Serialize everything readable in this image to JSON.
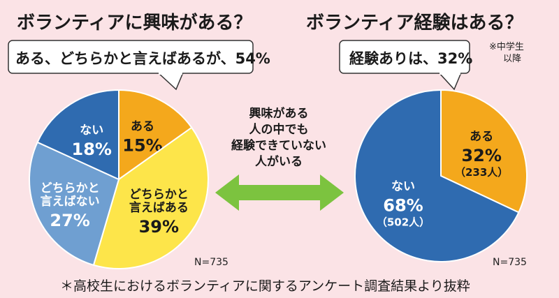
{
  "left": {
    "title": "ボランティアに興味がある？",
    "callout": "ある、どちらかと言えばあるが、54%",
    "n_label": "N=735"
  },
  "right": {
    "title": "ボランティア経験はある？",
    "callout": "経験ありは、32%",
    "note_line1": "※中学生",
    "note_line2": "以降",
    "n_label": "N=735"
  },
  "middle": {
    "line1": "興味がある",
    "line2": "人の中でも",
    "line3": "経験できていない",
    "line4": "人がいる"
  },
  "footer": "＊高校生におけるボランティアに関するアンケート調査結果より抜粋",
  "chart_data": [
    {
      "type": "pie",
      "title": "ボランティアに興味がある？",
      "slices": [
        {
          "label": [
            "ある"
          ],
          "pct_label": "15%",
          "value": 15,
          "color": "#f4a81c"
        },
        {
          "label": [
            "どちらかと",
            "言えばある"
          ],
          "pct_label": "39%",
          "value": 39,
          "color": "#fde54a"
        },
        {
          "label": [
            "どちらかと",
            "言えばない"
          ],
          "pct_label": "27%",
          "value": 27,
          "color": "#6f9fd1"
        },
        {
          "label": [
            "ない"
          ],
          "pct_label": "18%",
          "value": 18,
          "color": "#2f6bb0"
        }
      ]
    },
    {
      "type": "pie",
      "title": "ボランティア経験はある？",
      "slices": [
        {
          "label": [
            "ある"
          ],
          "pct_label": "32%",
          "count_label": "（233人）",
          "value": 32,
          "color": "#f4a81c"
        },
        {
          "label": [
            "ない"
          ],
          "pct_label": "68%",
          "count_label": "（502人）",
          "value": 68,
          "color": "#2f6bb0"
        }
      ]
    }
  ]
}
